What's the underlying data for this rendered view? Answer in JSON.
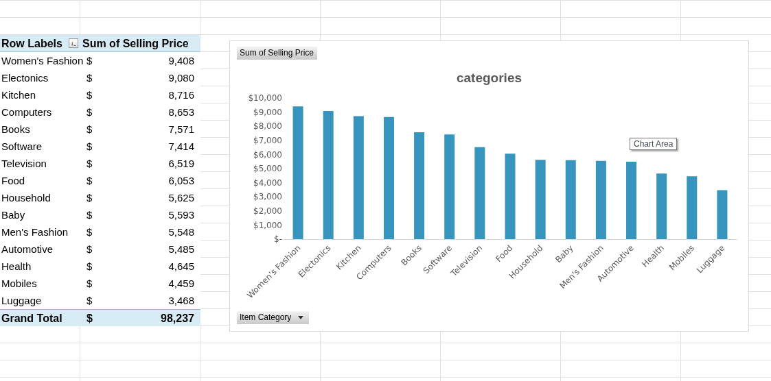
{
  "chart_data": {
    "type": "bar",
    "title": "categories",
    "xlabel": "Item Category",
    "ylabel": "Sum of Selling Price",
    "categories": [
      "Women's Fashion",
      "Electonics",
      "Kitchen",
      "Computers",
      "Books",
      "Software",
      "Television",
      "Food",
      "Household",
      "Baby",
      "Men's Fashion",
      "Automotive",
      "Health",
      "Mobiles",
      "Luggage"
    ],
    "values": [
      9408,
      9080,
      8716,
      8653,
      7571,
      7414,
      6519,
      6053,
      5625,
      5593,
      5548,
      5485,
      4645,
      4459,
      3468
    ],
    "value_labels": [
      "$ 9,408",
      "$ 9,080",
      "$ 8,716",
      "$ 8,653",
      "$ 7,571",
      "$ 7,414",
      "$ 6,519",
      "$ 6,053",
      "$ 5,625",
      "$ 5,593",
      "$ 5,548",
      "$ 5,485",
      "$ 4,645",
      "$ 4,459",
      "$ 3,468"
    ],
    "color": "#3794bc",
    "ylim": [
      0,
      10000
    ],
    "yticks": [
      {
        "value": 0,
        "label": "$-"
      },
      {
        "value": 1000,
        "label": "$1,000"
      },
      {
        "value": 2000,
        "label": "$2,000"
      },
      {
        "value": 3000,
        "label": "$3,000"
      },
      {
        "value": 4000,
        "label": "$4,000"
      },
      {
        "value": 5000,
        "label": "$5,000"
      },
      {
        "value": 6000,
        "label": "$6,000"
      },
      {
        "value": 7000,
        "label": "$7,000"
      },
      {
        "value": 8000,
        "label": "$8,000"
      },
      {
        "value": 9000,
        "label": "$9,000"
      },
      {
        "value": 10000,
        "label": "$10,000"
      }
    ],
    "grid": false,
    "annotations": [
      "Row Labels",
      "Grand Total",
      "$ 98,237",
      "Chart Area"
    ]
  }
}
